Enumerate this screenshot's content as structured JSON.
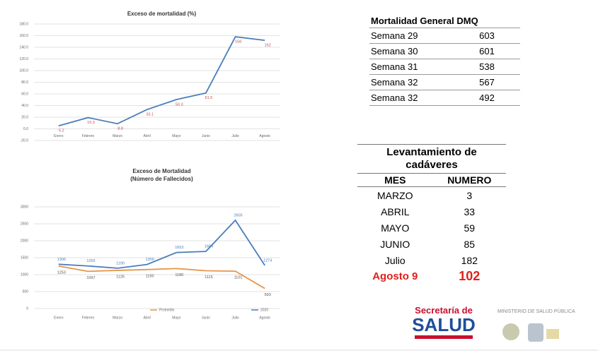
{
  "chart_data": [
    {
      "type": "line",
      "title": "Exceso de mortalidad (%)",
      "categories": [
        "Enero",
        "Febrero",
        "Marzo",
        "Abril",
        "Mayo",
        "Junio",
        "Julio",
        "Agosto"
      ],
      "series": [
        {
          "color": "#4a7ebb",
          "label_color": "#c0504d",
          "values": [
            5.2,
            19.3,
            8.8,
            33.1,
            50.3,
            61.5,
            158,
            152
          ]
        }
      ],
      "ylim": [
        -20,
        180
      ],
      "yticks": [
        {
          "value": -20,
          "label": "-20.0"
        },
        {
          "value": 0,
          "label": "0.0"
        },
        {
          "value": 20,
          "label": "20.0"
        },
        {
          "value": 40,
          "label": "40.0"
        },
        {
          "value": 60,
          "label": "60.0"
        },
        {
          "value": 80,
          "label": "80.0"
        },
        {
          "value": 100,
          "label": "100.0"
        },
        {
          "value": 120,
          "label": "120.0"
        },
        {
          "value": 140,
          "label": "140.0"
        },
        {
          "value": 160,
          "label": "160.0"
        },
        {
          "value": 180,
          "label": "180.0"
        }
      ],
      "grid": true
    },
    {
      "type": "line",
      "title": "Exceso de Mortalidad",
      "subtitle": "(Número de Fallecidos)",
      "categories": [
        "Enero",
        "Febrero",
        "Marzo",
        "Abril",
        "Mayo",
        "Junio",
        "Julio",
        "Agosto"
      ],
      "series": [
        {
          "name": "Promedio",
          "color": "#e8954a",
          "label_color": "#555555",
          "values": [
            1253,
            1097,
            1126,
            1150,
            1180,
            1115,
            1101,
            593
          ]
        },
        {
          "name": "2020",
          "color": "#4a7ebb",
          "label_color": "#4a7ebb",
          "values": [
            1306,
            1255,
            1190,
            1300,
            1653,
            1684,
            2605,
            1274
          ]
        }
      ],
      "ylim": [
        0,
        3000
      ],
      "yticks": [
        0,
        500,
        1000,
        1500,
        2000,
        2500,
        3000
      ],
      "grid": true,
      "legend": "bottom"
    }
  ],
  "table1": {
    "title": "Mortalidad General DMQ",
    "rows": [
      [
        "Semana 29",
        603
      ],
      [
        "Semana 30",
        601
      ],
      [
        "Semana 31",
        538
      ],
      [
        "Semana 32",
        567
      ],
      [
        "Semana 32",
        492
      ]
    ]
  },
  "table2": {
    "title": "Levantamiento de cadáveres",
    "header": [
      "MES",
      "NUMERO"
    ],
    "rows": [
      [
        "MARZO",
        3
      ],
      [
        "ABRIL",
        33
      ],
      [
        "MAYO",
        59
      ],
      [
        "JUNIO",
        85
      ],
      [
        "Julio",
        182
      ],
      [
        "Agosto 9",
        102
      ]
    ]
  },
  "logos": {
    "secretaria": "Secretaría de",
    "salud": "SALUD",
    "ministerio": "MINISTERIO DE SALUD PÚBLICA"
  }
}
